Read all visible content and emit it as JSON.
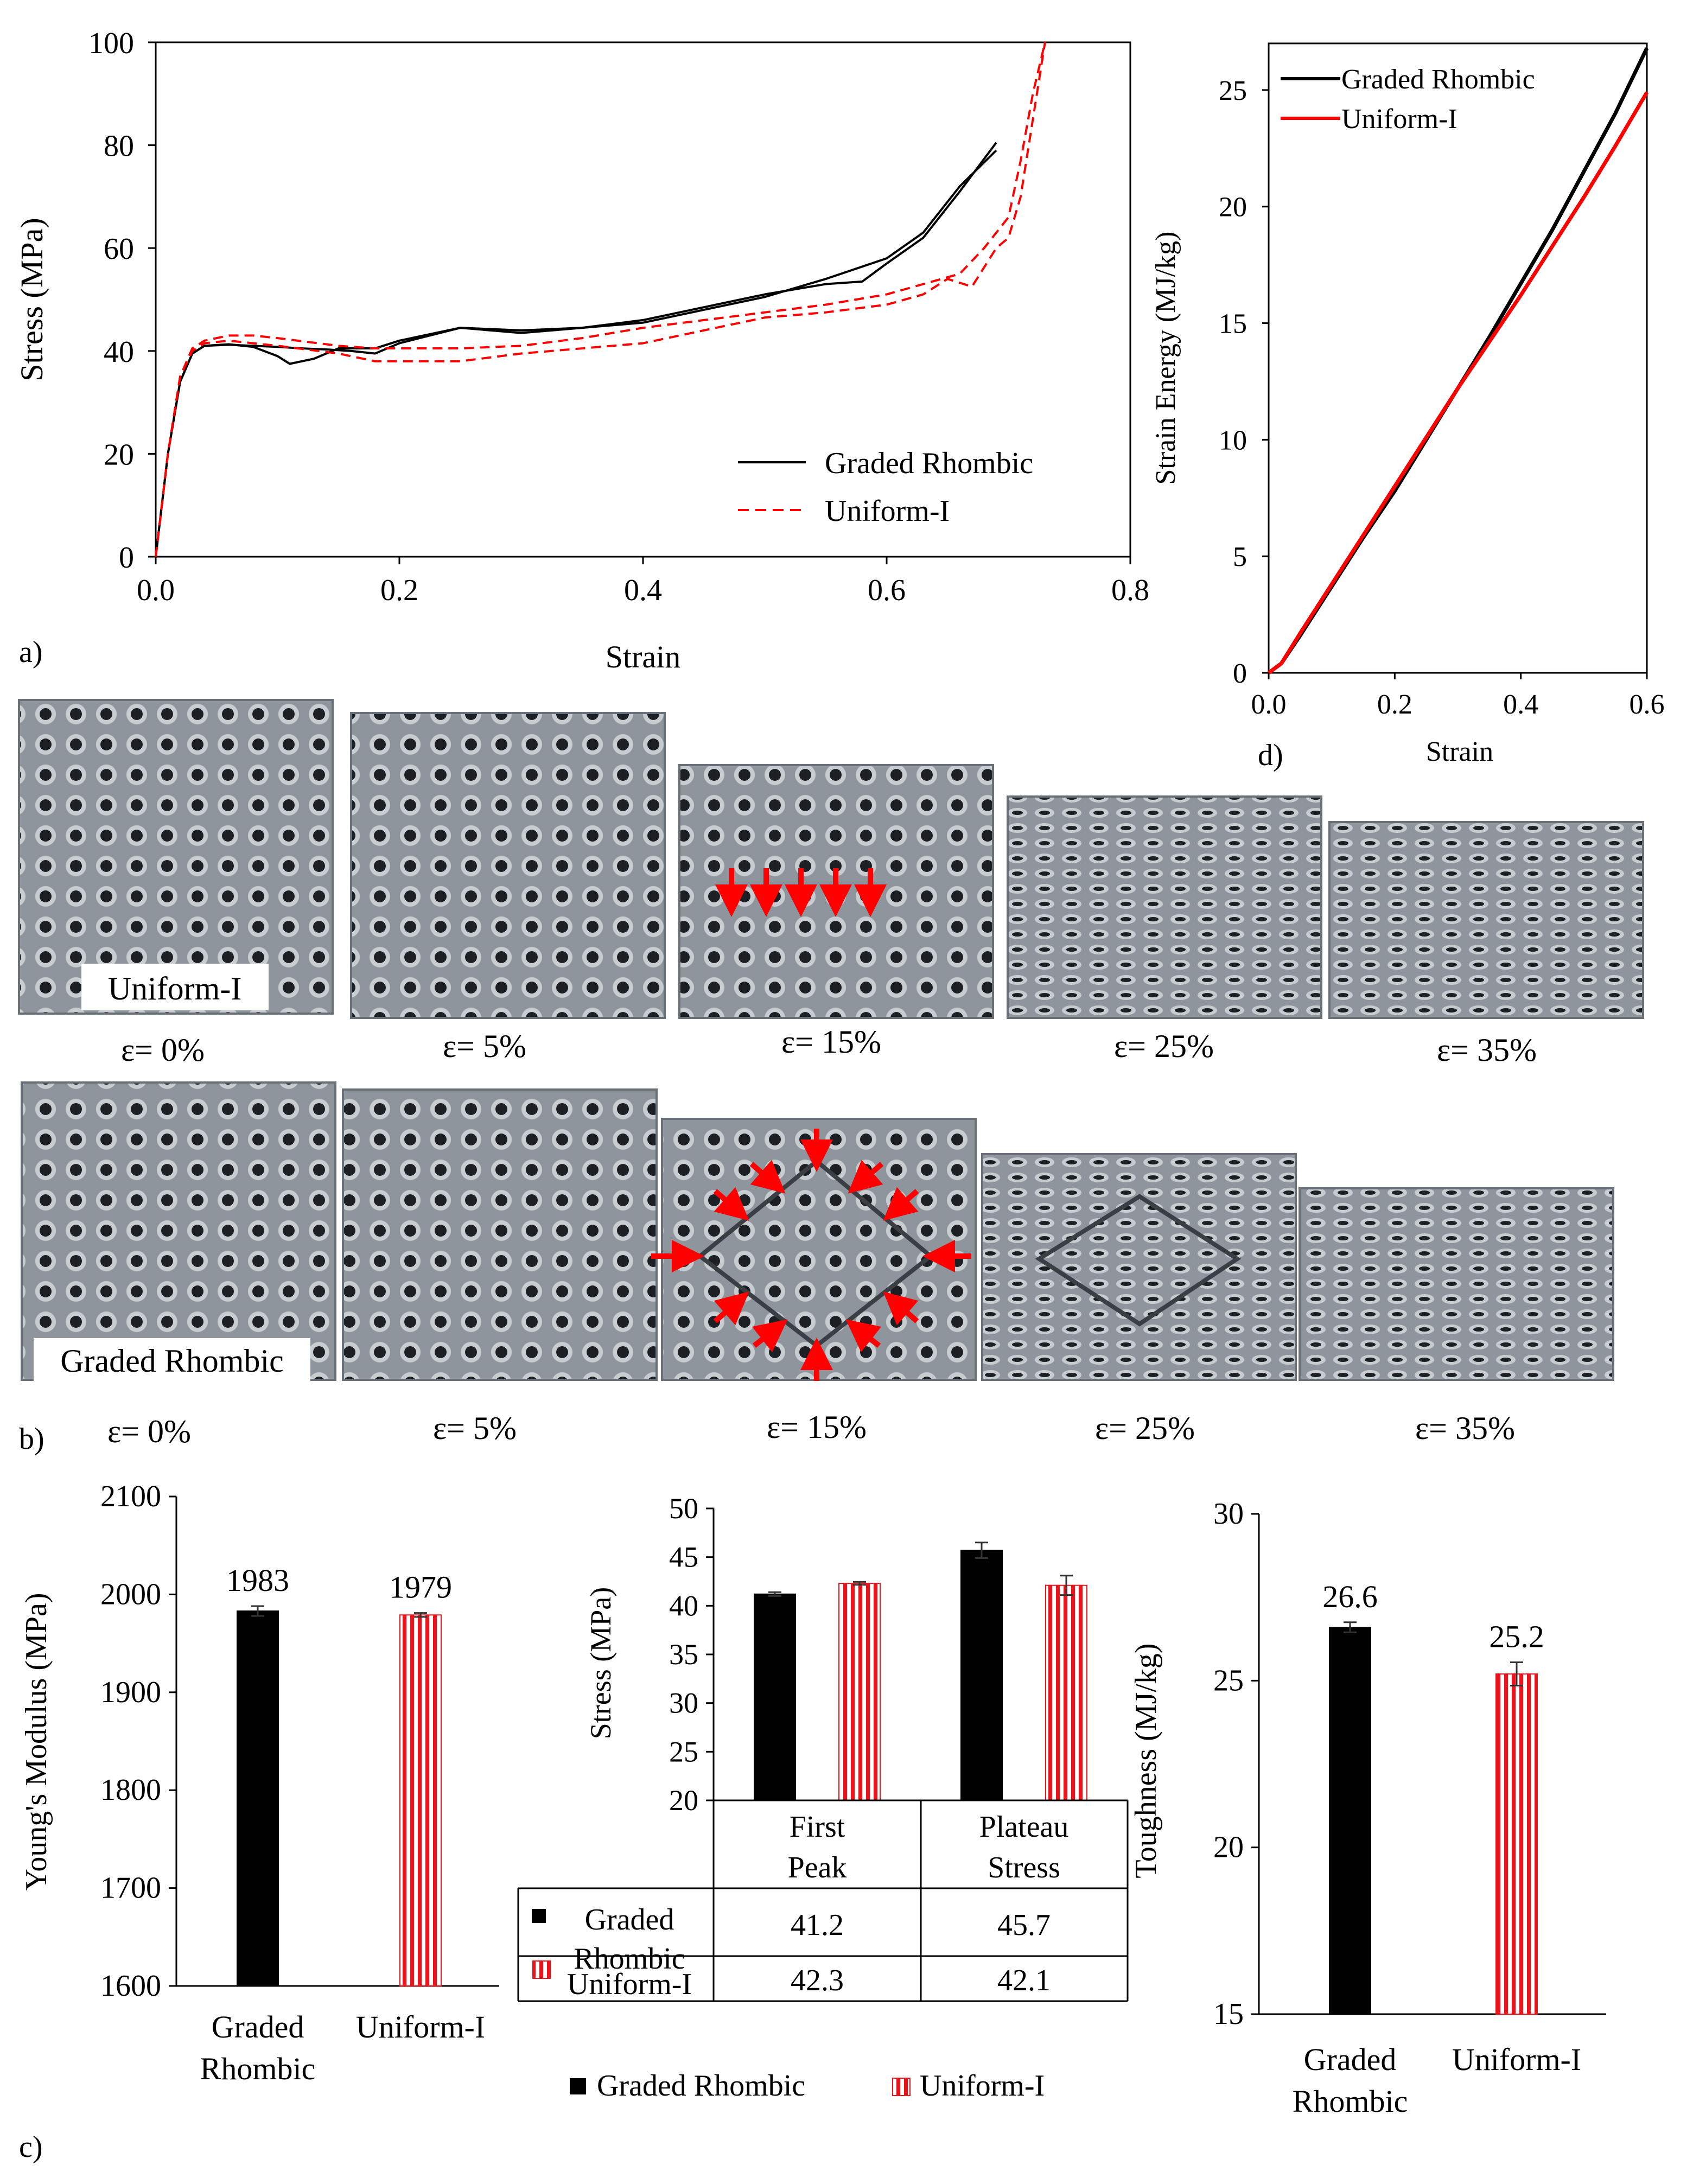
{
  "figure_labels": {
    "a": "a)",
    "b": "b)",
    "c": "c)",
    "d": "d)"
  },
  "chart_data": [
    {
      "id": "a",
      "type": "line",
      "xlabel": "Strain",
      "ylabel": "Stress (MPa)",
      "xlim": [
        0,
        0.8
      ],
      "ylim": [
        0,
        100
      ],
      "xticks": [
        "0.0",
        "0.2",
        "0.4",
        "0.6",
        "0.8"
      ],
      "xtick_values": [
        0,
        0.2,
        0.4,
        0.6,
        0.8
      ],
      "yticks": [
        "0",
        "20",
        "40",
        "60",
        "80",
        "100"
      ],
      "ytick_values": [
        0,
        20,
        40,
        60,
        80,
        100
      ],
      "legend_position": "bottom-right",
      "series": [
        {
          "name": "Graded Rhombic",
          "style": "solid",
          "color": "#000000",
          "x": [
            0,
            0.01,
            0.02,
            0.03,
            0.04,
            0.06,
            0.08,
            0.1,
            0.11,
            0.13,
            0.15,
            0.18,
            0.2,
            0.25,
            0.3,
            0.35,
            0.4,
            0.45,
            0.5,
            0.55,
            0.6,
            0.63,
            0.66,
            0.69
          ],
          "y": [
            0,
            20,
            34,
            39.5,
            41,
            41.3,
            40.8,
            39,
            37.5,
            38.5,
            40.5,
            40.5,
            42,
            44.5,
            43.5,
            44.5,
            45.5,
            48,
            50.5,
            54,
            58,
            63,
            72,
            79
          ]
        },
        {
          "name": "Graded Rhombic",
          "style": "solid",
          "color": "#000000",
          "x": [
            0,
            0.01,
            0.02,
            0.03,
            0.04,
            0.06,
            0.08,
            0.1,
            0.12,
            0.14,
            0.16,
            0.18,
            0.2,
            0.25,
            0.3,
            0.35,
            0.4,
            0.45,
            0.5,
            0.55,
            0.58,
            0.6,
            0.63,
            0.66,
            0.69
          ],
          "y": [
            0,
            20,
            34,
            39.5,
            41,
            41.2,
            41,
            40.8,
            40.5,
            40.3,
            40,
            39.5,
            41.5,
            44.5,
            44,
            44.5,
            46,
            48.5,
            51,
            53,
            53.5,
            57,
            62,
            71,
            80.5
          ]
        },
        {
          "name": "Uniform-I",
          "style": "dashed",
          "color": "#ff0000",
          "x": [
            0,
            0.01,
            0.02,
            0.03,
            0.04,
            0.06,
            0.08,
            0.1,
            0.15,
            0.18,
            0.2,
            0.25,
            0.3,
            0.35,
            0.4,
            0.45,
            0.5,
            0.55,
            0.6,
            0.63,
            0.66,
            0.68,
            0.7,
            0.71,
            0.72,
            0.73
          ],
          "y": [
            0,
            20,
            35,
            40.5,
            42,
            43,
            43,
            42.5,
            41,
            40.5,
            40.5,
            40.5,
            41,
            42.5,
            44.5,
            46,
            47.5,
            49,
            51,
            53,
            55,
            60,
            66,
            77,
            90,
            100
          ]
        },
        {
          "name": "Uniform-I",
          "style": "dashed",
          "color": "#ff0000",
          "x": [
            0,
            0.01,
            0.02,
            0.03,
            0.04,
            0.06,
            0.08,
            0.1,
            0.15,
            0.18,
            0.2,
            0.25,
            0.3,
            0.35,
            0.4,
            0.45,
            0.5,
            0.55,
            0.6,
            0.63,
            0.65,
            0.67,
            0.69,
            0.7,
            0.71,
            0.72,
            0.73
          ],
          "y": [
            0,
            20,
            35,
            40,
            41.5,
            42,
            41.5,
            41,
            39.5,
            38,
            38,
            38,
            39.5,
            40.5,
            41.5,
            44,
            46.5,
            47.5,
            49,
            51,
            54,
            52.5,
            60,
            62,
            70,
            85,
            100
          ]
        }
      ],
      "legend": [
        "Graded Rhombic",
        "Uniform-I"
      ]
    },
    {
      "id": "d",
      "type": "line",
      "xlabel": "Strain",
      "ylabel": "Strain Energy (MJ/kg)",
      "xlim": [
        0,
        0.6
      ],
      "ylim": [
        0,
        27
      ],
      "xticks": [
        "0.0",
        "0.2",
        "0.4",
        "0.6"
      ],
      "xtick_values": [
        0,
        0.2,
        0.4,
        0.6
      ],
      "yticks": [
        "0",
        "5",
        "10",
        "15",
        "20",
        "25"
      ],
      "ytick_values": [
        0,
        5,
        10,
        15,
        20,
        25
      ],
      "legend_position": "top-left",
      "series": [
        {
          "name": "Graded Rhombic",
          "color": "#000000",
          "x": [
            0,
            0.02,
            0.05,
            0.1,
            0.15,
            0.2,
            0.25,
            0.3,
            0.35,
            0.4,
            0.45,
            0.5,
            0.55,
            0.6
          ],
          "y": [
            0,
            0.4,
            1.6,
            3.7,
            5.8,
            7.8,
            10,
            12.2,
            14.4,
            16.7,
            19,
            21.5,
            24,
            26.8
          ]
        },
        {
          "name": "Uniform-I",
          "color": "#ff0000",
          "x": [
            0,
            0.02,
            0.05,
            0.1,
            0.15,
            0.2,
            0.25,
            0.3,
            0.35,
            0.4,
            0.45,
            0.5,
            0.55,
            0.6
          ],
          "y": [
            0,
            0.4,
            1.7,
            3.8,
            5.9,
            8,
            10.1,
            12.2,
            14.2,
            16.2,
            18.3,
            20.4,
            22.6,
            24.9
          ]
        }
      ],
      "legend": [
        "Graded Rhombic",
        "Uniform-I"
      ]
    },
    {
      "id": "c-modulus",
      "type": "bar",
      "ylabel": "Young's Modulus  (MPa)",
      "ylim": [
        1600,
        2100
      ],
      "yticks": [
        "1600",
        "1700",
        "1800",
        "1900",
        "2000",
        "2100"
      ],
      "ytick_values": [
        1600,
        1700,
        1800,
        1900,
        2000,
        2100
      ],
      "categories": [
        [
          "Graded",
          "Rhombic"
        ],
        [
          "Uniform-I"
        ]
      ],
      "values": [
        1983,
        1979
      ],
      "data_labels": [
        "1983",
        "1979"
      ],
      "errors": [
        5,
        2
      ]
    },
    {
      "id": "c-stress",
      "type": "bar",
      "ylabel": "Stress (MPa)",
      "ylim": [
        20,
        50
      ],
      "yticks": [
        "20",
        "25",
        "30",
        "35",
        "40",
        "45",
        "50"
      ],
      "ytick_values": [
        20,
        25,
        30,
        35,
        40,
        45,
        50
      ],
      "categories": [
        [
          "First",
          "Peak"
        ],
        [
          "Plateau",
          "Stress"
        ]
      ],
      "series": [
        {
          "name": "Graded Rhombic",
          "table_label": [
            "Graded",
            "Rhombic"
          ],
          "values": [
            41.2,
            45.7
          ],
          "errors": [
            0.2,
            0.8
          ],
          "table_values": [
            "41.2",
            "45.7"
          ]
        },
        {
          "name": "Uniform-I",
          "table_label": [
            "Uniform-I"
          ],
          "values": [
            42.3,
            42.1
          ],
          "errors": [
            0.15,
            1.0
          ],
          "table_values": [
            "42.3",
            "42.1"
          ]
        }
      ],
      "legend": [
        "Graded Rhombic",
        "Uniform-I"
      ]
    },
    {
      "id": "c-toughness",
      "type": "bar",
      "ylabel": "Toughness  (MJ/kg)",
      "ylim": [
        15,
        30
      ],
      "yticks": [
        "15",
        "20",
        "25",
        "30"
      ],
      "ytick_values": [
        15,
        20,
        25,
        30
      ],
      "categories": [
        [
          "Graded",
          "Rhombic"
        ],
        [
          "Uniform-I"
        ]
      ],
      "values": [
        26.6,
        25.2
      ],
      "data_labels": [
        "26.6",
        "25.2"
      ],
      "errors": [
        0.15,
        0.35
      ]
    }
  ],
  "photos": {
    "uniform_label": "Uniform-I",
    "graded_label": "Graded Rhombic",
    "strain_labels": [
      "ε= 0%",
      "ε= 5%",
      "ε= 15%",
      "ε= 25%",
      "ε= 35%"
    ]
  }
}
